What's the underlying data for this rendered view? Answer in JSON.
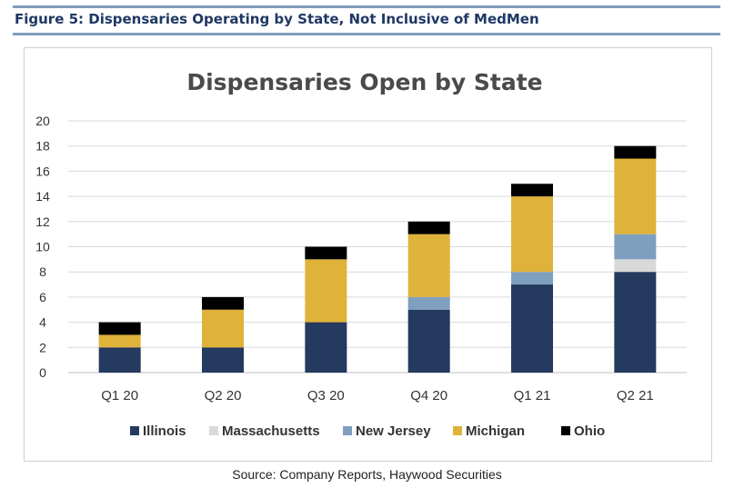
{
  "figure": {
    "title": "Figure 5: Dispensaries Operating by State, Not Inclusive of MedMen",
    "source": "Source: Company Reports, Haywood Securities"
  },
  "chart_data": {
    "type": "bar",
    "stacked": true,
    "title": "Dispensaries Open by State",
    "xlabel": "",
    "ylabel": "",
    "ylim": [
      0,
      20
    ],
    "yticks": [
      0,
      2,
      4,
      6,
      8,
      10,
      12,
      14,
      16,
      18,
      20
    ],
    "grid": true,
    "legend_position": "bottom",
    "categories": [
      "Q1 20",
      "Q2 20",
      "Q3 20",
      "Q4 20",
      "Q1 21",
      "Q2 21"
    ],
    "series": [
      {
        "name": "Illinois",
        "color": "#243a5e",
        "values": [
          2,
          2,
          4,
          5,
          7,
          8
        ]
      },
      {
        "name": "Massachusetts",
        "color": "#d9d9d9",
        "values": [
          0,
          0,
          0,
          0,
          0,
          1
        ]
      },
      {
        "name": "New Jersey",
        "color": "#7f9fbf",
        "values": [
          0,
          0,
          0,
          1,
          1,
          2
        ]
      },
      {
        "name": "Michigan",
        "color": "#dfb23a",
        "values": [
          1,
          3,
          5,
          5,
          6,
          6
        ]
      },
      {
        "name": "Ohio",
        "color": "#000000",
        "values": [
          1,
          1,
          1,
          1,
          1,
          1
        ]
      }
    ]
  }
}
